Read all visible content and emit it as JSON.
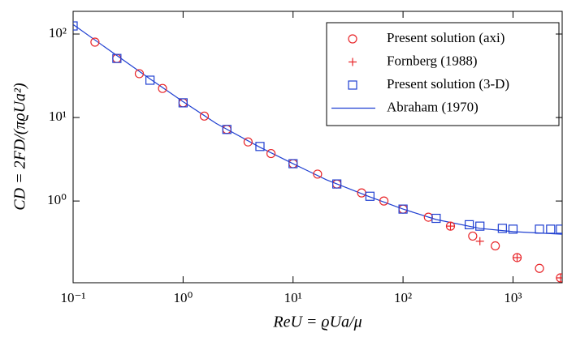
{
  "chart_data": {
    "type": "scatter",
    "xlabel": "ReU = ϱUa/μ",
    "ylabel": "CD = 2FD/(πϱUa²)",
    "xscale": "log",
    "yscale": "log",
    "xlim": [
      0.1,
      2800
    ],
    "ylim": [
      0.105,
      187
    ],
    "xticks": [
      {
        "value": 0.1,
        "label": "10⁻¹"
      },
      {
        "value": 1,
        "label": "10⁰"
      },
      {
        "value": 10,
        "label": "10¹"
      },
      {
        "value": 100,
        "label": "10²"
      },
      {
        "value": 1000,
        "label": "10³"
      }
    ],
    "yticks": [
      {
        "value": 1,
        "label": "10⁰"
      },
      {
        "value": 10,
        "label": "10¹"
      },
      {
        "value": 100,
        "label": "10²"
      }
    ],
    "legend": "upper right",
    "series": [
      {
        "name": "Present solution (axi)",
        "marker": "circle",
        "color": "#e8262a",
        "x": [
          0.158,
          0.25,
          0.4,
          0.65,
          1,
          1.56,
          2.5,
          3.9,
          6.3,
          10,
          16.7,
          25,
          42,
          67,
          100,
          170,
          270,
          430,
          690,
          1090,
          1740,
          2700
        ],
        "values": [
          80,
          51,
          33.5,
          22.3,
          15,
          10.4,
          7.2,
          5.1,
          3.7,
          2.8,
          2.1,
          1.6,
          1.25,
          1.0,
          0.8,
          0.64,
          0.5,
          0.38,
          0.29,
          0.21,
          0.156,
          0.12
        ]
      },
      {
        "name": "Fornberg (1988)",
        "marker": "plus",
        "color": "#e8262a",
        "x": [
          270,
          500,
          1090,
          2700
        ],
        "values": [
          0.5,
          0.33,
          0.21,
          0.12
        ]
      },
      {
        "name": "Present solution (3-D)",
        "marker": "square",
        "color": "#1f3fd1",
        "x": [
          0.1,
          0.25,
          0.5,
          1,
          2.5,
          5,
          10,
          25,
          50,
          100,
          200,
          400,
          500,
          800,
          1000,
          1740,
          2200,
          2700
        ],
        "values": [
          125,
          51,
          28,
          15,
          7.2,
          4.5,
          2.8,
          1.6,
          1.14,
          0.8,
          0.62,
          0.52,
          0.5,
          0.47,
          0.46,
          0.46,
          0.46,
          0.46
        ]
      },
      {
        "name": "Abraham (1970)",
        "marker": "line",
        "color": "#1f3fd1",
        "x": [
          0.1,
          0.2,
          0.5,
          1,
          2,
          5,
          10,
          20,
          50,
          100,
          200,
          500,
          1000,
          2800
        ],
        "values": [
          130,
          68,
          29,
          15.5,
          8.5,
          4.4,
          2.8,
          1.8,
          1.12,
          0.8,
          0.6,
          0.47,
          0.43,
          0.4
        ]
      }
    ]
  }
}
